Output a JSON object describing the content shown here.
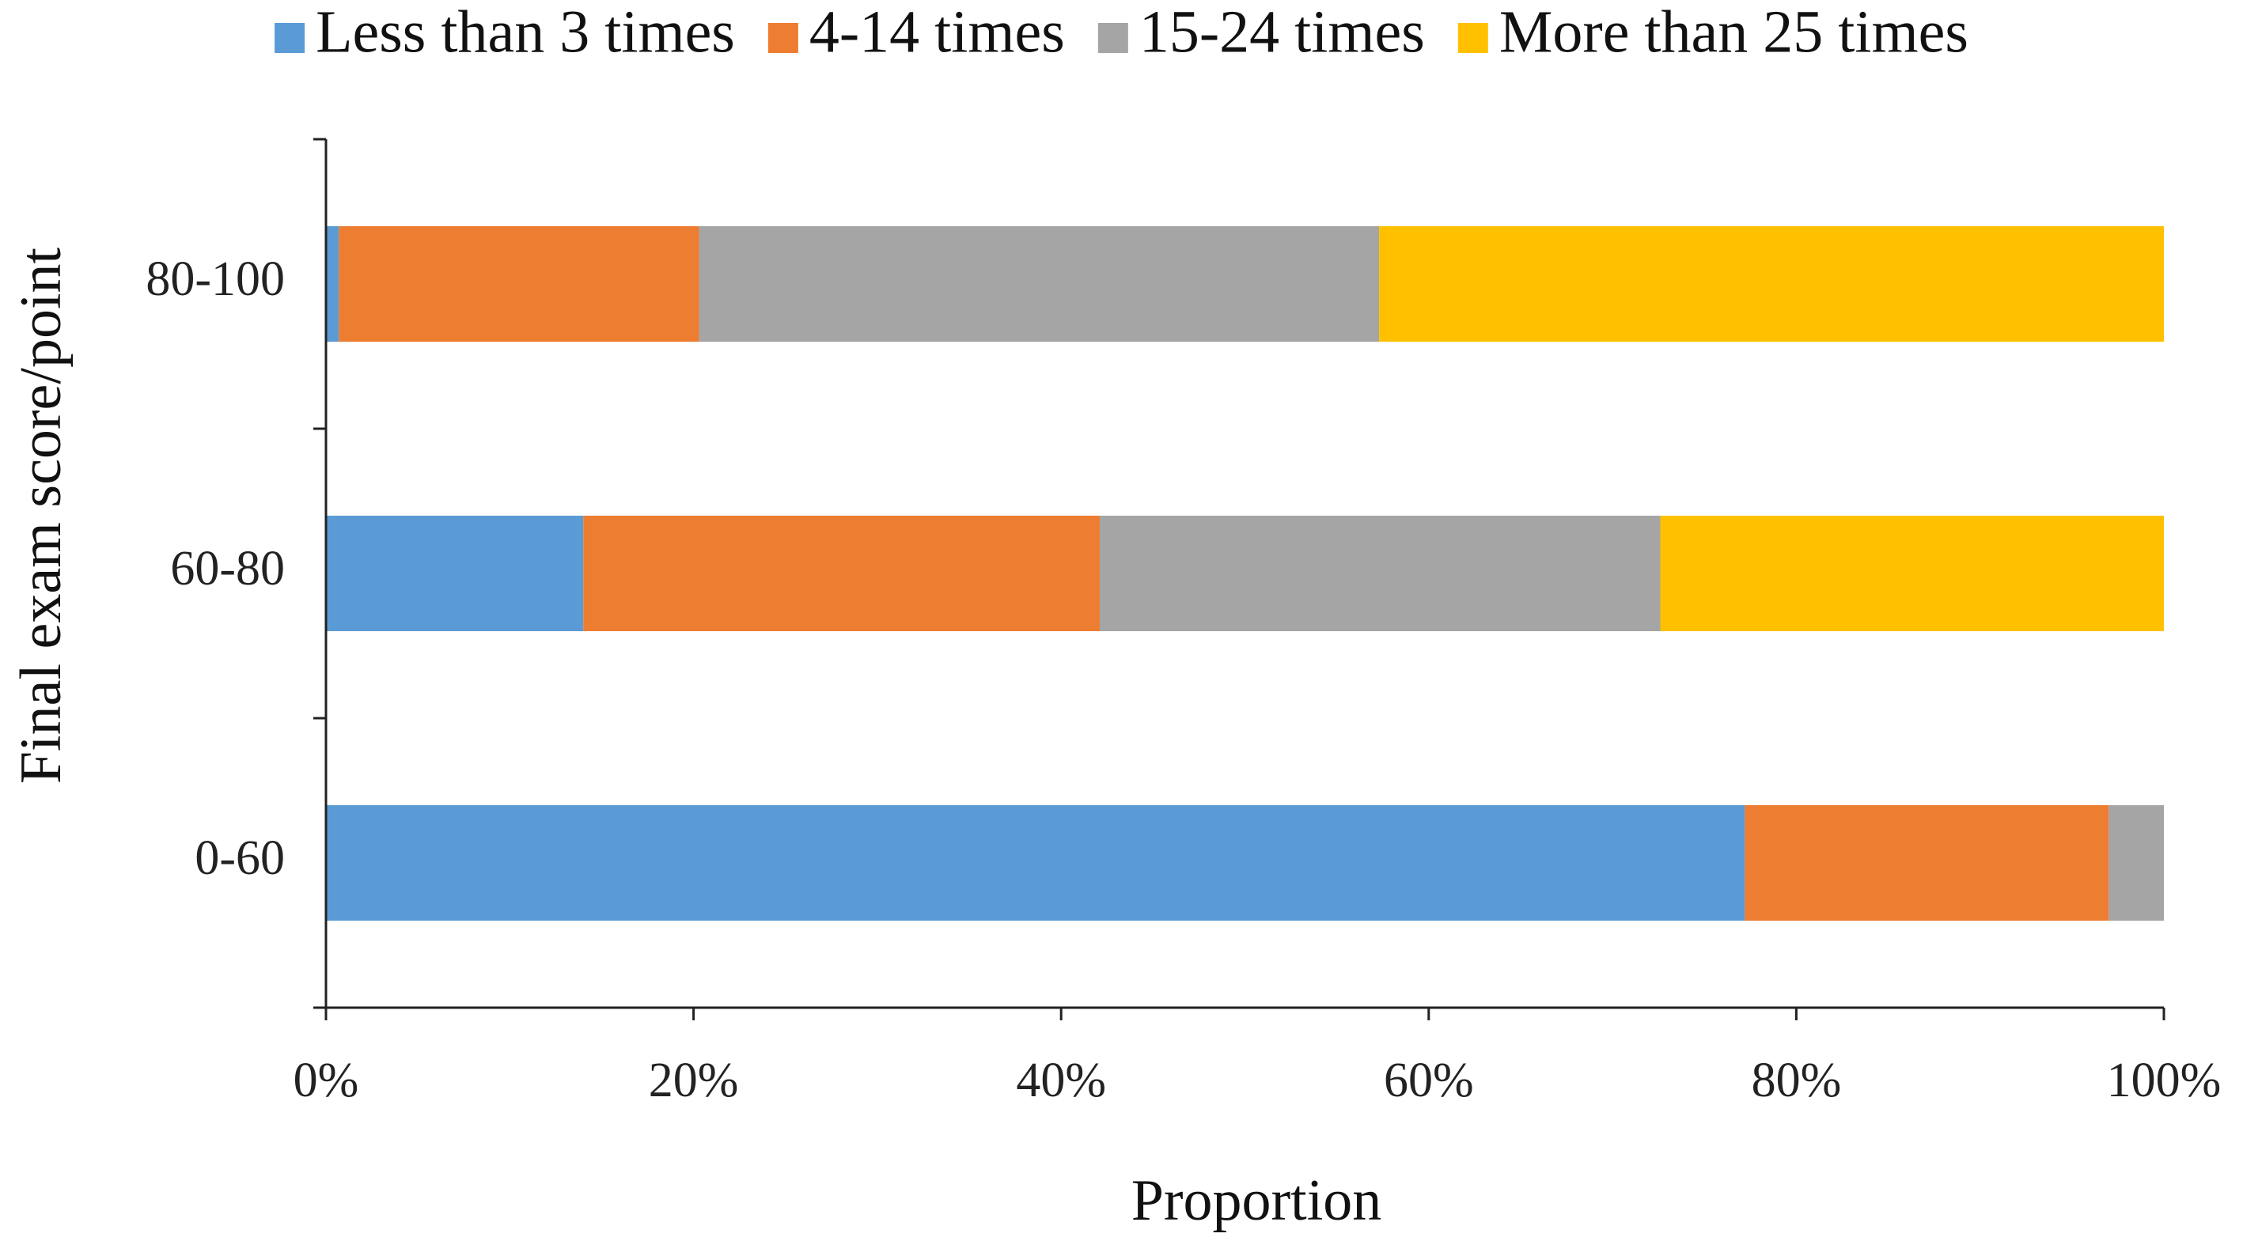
{
  "chart_data": {
    "type": "bar",
    "orientation": "horizontal",
    "stacked": "percent",
    "title": "",
    "xlabel": "Proportion",
    "ylabel": "Final exam score/point",
    "xlim": [
      0,
      100
    ],
    "x_tick_labels": [
      "0%",
      "20%",
      "40%",
      "60%",
      "80%",
      "100%"
    ],
    "categories": [
      "80-100",
      "60-80",
      "0-60"
    ],
    "series": [
      {
        "name": "Less than 3 times",
        "color": "#5B9BD5",
        "values": [
          0.7,
          14.0,
          77.2
        ]
      },
      {
        "name": "4-14 times",
        "color": "#ED7D31",
        "values": [
          19.6,
          28.1,
          19.8
        ]
      },
      {
        "name": "15-24 times",
        "color": "#A5A5A5",
        "values": [
          37.0,
          30.5,
          3.0
        ]
      },
      {
        "name": "More than 25 times",
        "color": "#FFC000",
        "values": [
          42.7,
          27.4,
          0.0
        ]
      }
    ],
    "legend": {
      "position": "top"
    },
    "grid": false
  }
}
